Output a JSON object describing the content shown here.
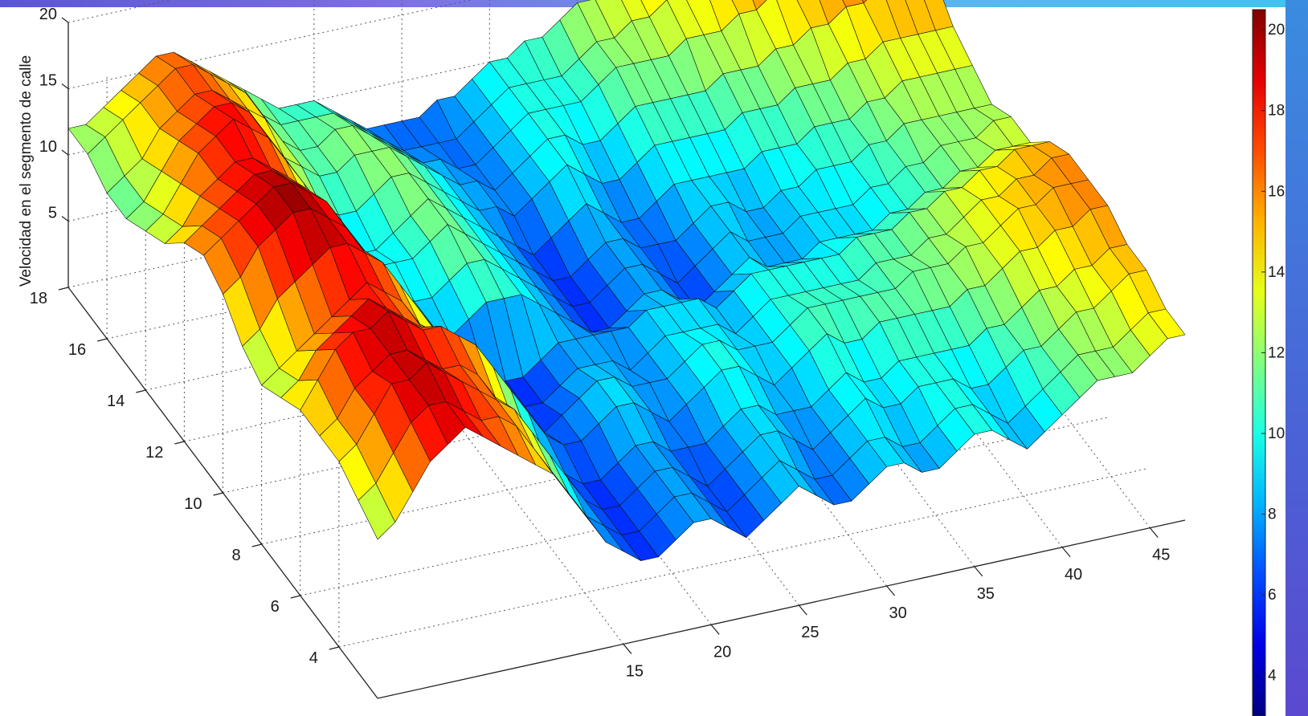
{
  "chart_data": {
    "type": "surface3d",
    "colormap": "jet",
    "zlabel": "Velocidad en el segmento de calle",
    "xlabel": "",
    "ylabel": "",
    "x_ticks": [
      "15",
      "20",
      "25",
      "30",
      "35",
      "40",
      "45"
    ],
    "y_ticks": [
      "4",
      "6",
      "8",
      "10",
      "12",
      "14",
      "16",
      "18"
    ],
    "z_ticks": [
      "5",
      "10",
      "15",
      "20"
    ],
    "colorbar_ticks": [
      "4",
      "6",
      "8",
      "10",
      "12",
      "14",
      "16",
      "18",
      "20"
    ],
    "x_range": [
      1,
      47
    ],
    "y_range": [
      2,
      18
    ],
    "z_range": [
      0,
      20
    ],
    "color_range": [
      3,
      20.5
    ],
    "grid": true,
    "surface_rows": [
      {
        "y": 2,
        "z": [
          12,
          13,
          15,
          17,
          18,
          19,
          18,
          17,
          16,
          15,
          14,
          12,
          10,
          8,
          7,
          6,
          6,
          7,
          8,
          8,
          7,
          6,
          7,
          8,
          9,
          8,
          7,
          7,
          8,
          9,
          9,
          8,
          8,
          9,
          10,
          10,
          9,
          8,
          9,
          10,
          11,
          12,
          12,
          12,
          13,
          14,
          14
        ]
      },
      {
        "y": 3,
        "z": [
          13,
          14,
          16,
          18,
          19,
          19,
          18,
          17,
          17,
          16,
          14,
          12,
          10,
          8,
          7,
          6,
          6,
          7,
          8,
          8,
          7,
          6,
          7,
          8,
          9,
          8,
          7,
          7,
          8,
          9,
          9,
          8,
          8,
          9,
          10,
          10,
          9,
          8,
          9,
          10,
          11,
          12,
          12,
          12,
          13,
          14,
          14
        ]
      },
      {
        "y": 4,
        "z": [
          14,
          15,
          17,
          19,
          19,
          20,
          19,
          18,
          17,
          16,
          15,
          13,
          11,
          9,
          7,
          6,
          6,
          7,
          8,
          8,
          7,
          6,
          7,
          8,
          9,
          9,
          8,
          7,
          8,
          9,
          10,
          9,
          9,
          10,
          10,
          10,
          9,
          9,
          10,
          11,
          11,
          12,
          13,
          13,
          14,
          15,
          15
        ]
      },
      {
        "y": 5,
        "z": [
          14,
          15,
          17,
          18,
          19,
          19,
          18,
          17,
          17,
          16,
          14,
          12,
          10,
          8,
          7,
          6,
          6,
          7,
          8,
          8,
          7,
          7,
          7,
          8,
          9,
          9,
          8,
          8,
          8,
          9,
          10,
          9,
          9,
          10,
          10,
          10,
          10,
          10,
          11,
          11,
          12,
          13,
          13,
          14,
          14,
          15,
          15
        ]
      },
      {
        "y": 6,
        "z": [
          14,
          16,
          18,
          19,
          19,
          20,
          19,
          18,
          18,
          17,
          16,
          14,
          12,
          10,
          8,
          7,
          7,
          8,
          9,
          9,
          8,
          7,
          8,
          9,
          10,
          10,
          9,
          8,
          9,
          10,
          11,
          10,
          10,
          11,
          11,
          11,
          11,
          11,
          12,
          12,
          13,
          14,
          14,
          15,
          15,
          16,
          16
        ]
      },
      {
        "y": 7,
        "z": [
          13,
          14,
          16,
          17,
          18,
          19,
          18,
          17,
          16,
          15,
          13,
          12,
          10,
          8,
          7,
          6,
          7,
          8,
          9,
          9,
          8,
          8,
          8,
          9,
          10,
          10,
          9,
          9,
          9,
          10,
          11,
          11,
          11,
          11,
          11,
          11,
          12,
          12,
          12,
          13,
          13,
          14,
          15,
          15,
          16,
          16,
          16
        ]
      },
      {
        "y": 8,
        "z": [
          12,
          13,
          14,
          15,
          16,
          17,
          18,
          17,
          16,
          14,
          13,
          11,
          9,
          7,
          6,
          6,
          6,
          7,
          8,
          8,
          8,
          7,
          8,
          9,
          9,
          9,
          9,
          8,
          9,
          10,
          10,
          10,
          10,
          10,
          10,
          11,
          11,
          11,
          12,
          12,
          13,
          14,
          14,
          15,
          15,
          16,
          16
        ]
      },
      {
        "y": 9,
        "z": [
          13,
          14,
          16,
          17,
          18,
          19,
          19,
          18,
          17,
          15,
          13,
          11,
          9,
          7,
          6,
          6,
          6,
          7,
          8,
          8,
          8,
          8,
          8,
          9,
          9,
          9,
          9,
          8,
          9,
          10,
          10,
          10,
          10,
          10,
          10,
          11,
          11,
          11,
          12,
          12,
          13,
          13,
          14,
          14,
          15,
          15,
          15
        ]
      },
      {
        "y": 10,
        "z": [
          15,
          16,
          18,
          19,
          20,
          20,
          19,
          18,
          16,
          14,
          12,
          10,
          9,
          8,
          9,
          10,
          10,
          10,
          9,
          8,
          7,
          6,
          6,
          7,
          8,
          8,
          7,
          6,
          7,
          8,
          9,
          8,
          8,
          8,
          9,
          9,
          9,
          9,
          10,
          10,
          11,
          11,
          12,
          12,
          13,
          13,
          13
        ]
      },
      {
        "y": 11,
        "z": [
          16,
          17,
          18,
          19,
          20,
          20,
          19,
          18,
          16,
          14,
          12,
          10,
          9,
          9,
          10,
          11,
          11,
          10,
          9,
          8,
          7,
          6,
          6,
          7,
          8,
          8,
          7,
          6,
          7,
          8,
          9,
          8,
          8,
          8,
          9,
          9,
          9,
          9,
          10,
          10,
          11,
          11,
          12,
          12,
          12,
          13,
          13
        ]
      },
      {
        "y": 12,
        "z": [
          15,
          16,
          17,
          18,
          19,
          19,
          18,
          17,
          15,
          13,
          11,
          10,
          10,
          10,
          11,
          12,
          11,
          10,
          9,
          8,
          7,
          6,
          6,
          7,
          8,
          8,
          7,
          7,
          7,
          8,
          9,
          9,
          8,
          8,
          9,
          9,
          10,
          10,
          10,
          11,
          11,
          12,
          12,
          12,
          12,
          12,
          12
        ]
      },
      {
        "y": 13,
        "z": [
          13,
          14,
          16,
          17,
          18,
          18,
          17,
          16,
          14,
          12,
          10,
          9,
          9,
          10,
          11,
          12,
          11,
          10,
          9,
          8,
          7,
          6,
          7,
          8,
          9,
          8,
          7,
          7,
          8,
          9,
          9,
          9,
          9,
          9,
          10,
          10,
          10,
          11,
          11,
          11,
          12,
          12,
          13,
          13,
          13,
          13,
          13
        ]
      },
      {
        "y": 14,
        "z": [
          12,
          13,
          15,
          17,
          18,
          19,
          18,
          17,
          15,
          13,
          11,
          10,
          10,
          11,
          12,
          12,
          11,
          10,
          9,
          8,
          8,
          7,
          8,
          9,
          10,
          9,
          8,
          8,
          9,
          10,
          10,
          10,
          10,
          10,
          11,
          11,
          11,
          12,
          12,
          12,
          13,
          13,
          14,
          14,
          14,
          14,
          14
        ]
      },
      {
        "y": 15,
        "z": [
          11,
          12,
          14,
          16,
          17,
          18,
          18,
          17,
          15,
          13,
          12,
          11,
          11,
          12,
          12,
          12,
          11,
          10,
          9,
          8,
          8,
          7,
          8,
          9,
          10,
          10,
          9,
          9,
          10,
          11,
          11,
          11,
          11,
          11,
          12,
          12,
          12,
          13,
          13,
          14,
          14,
          15,
          15,
          16,
          16,
          16,
          16
        ]
      },
      {
        "y": 16,
        "z": [
          11,
          12,
          13,
          15,
          16,
          17,
          17,
          16,
          15,
          14,
          12,
          11,
          11,
          12,
          12,
          11,
          10,
          9,
          8,
          8,
          7,
          7,
          8,
          9,
          10,
          10,
          10,
          10,
          11,
          12,
          12,
          12,
          12,
          13,
          13,
          13,
          14,
          14,
          15,
          15,
          16,
          16,
          17,
          17,
          17,
          17,
          17
        ]
      },
      {
        "y": 17,
        "z": [
          12,
          13,
          14,
          15,
          16,
          17,
          17,
          16,
          15,
          14,
          12,
          11,
          11,
          11,
          11,
          10,
          9,
          8,
          7,
          7,
          7,
          7,
          8,
          9,
          10,
          10,
          10,
          10,
          11,
          12,
          12,
          13,
          13,
          14,
          14,
          15,
          15,
          16,
          17,
          18,
          18,
          19,
          19,
          19,
          18,
          18,
          18
        ]
      },
      {
        "y": 18,
        "z": [
          12,
          12,
          13,
          14,
          15,
          16,
          16,
          15,
          14,
          13,
          12,
          11,
          10,
          10,
          10,
          9,
          8,
          7,
          7,
          7,
          7,
          8,
          8,
          9,
          10,
          10,
          11,
          11,
          12,
          13,
          13,
          14,
          14,
          15,
          15,
          16,
          17,
          18,
          19,
          20,
          20,
          20,
          19,
          18,
          18,
          18,
          18
        ]
      }
    ]
  }
}
